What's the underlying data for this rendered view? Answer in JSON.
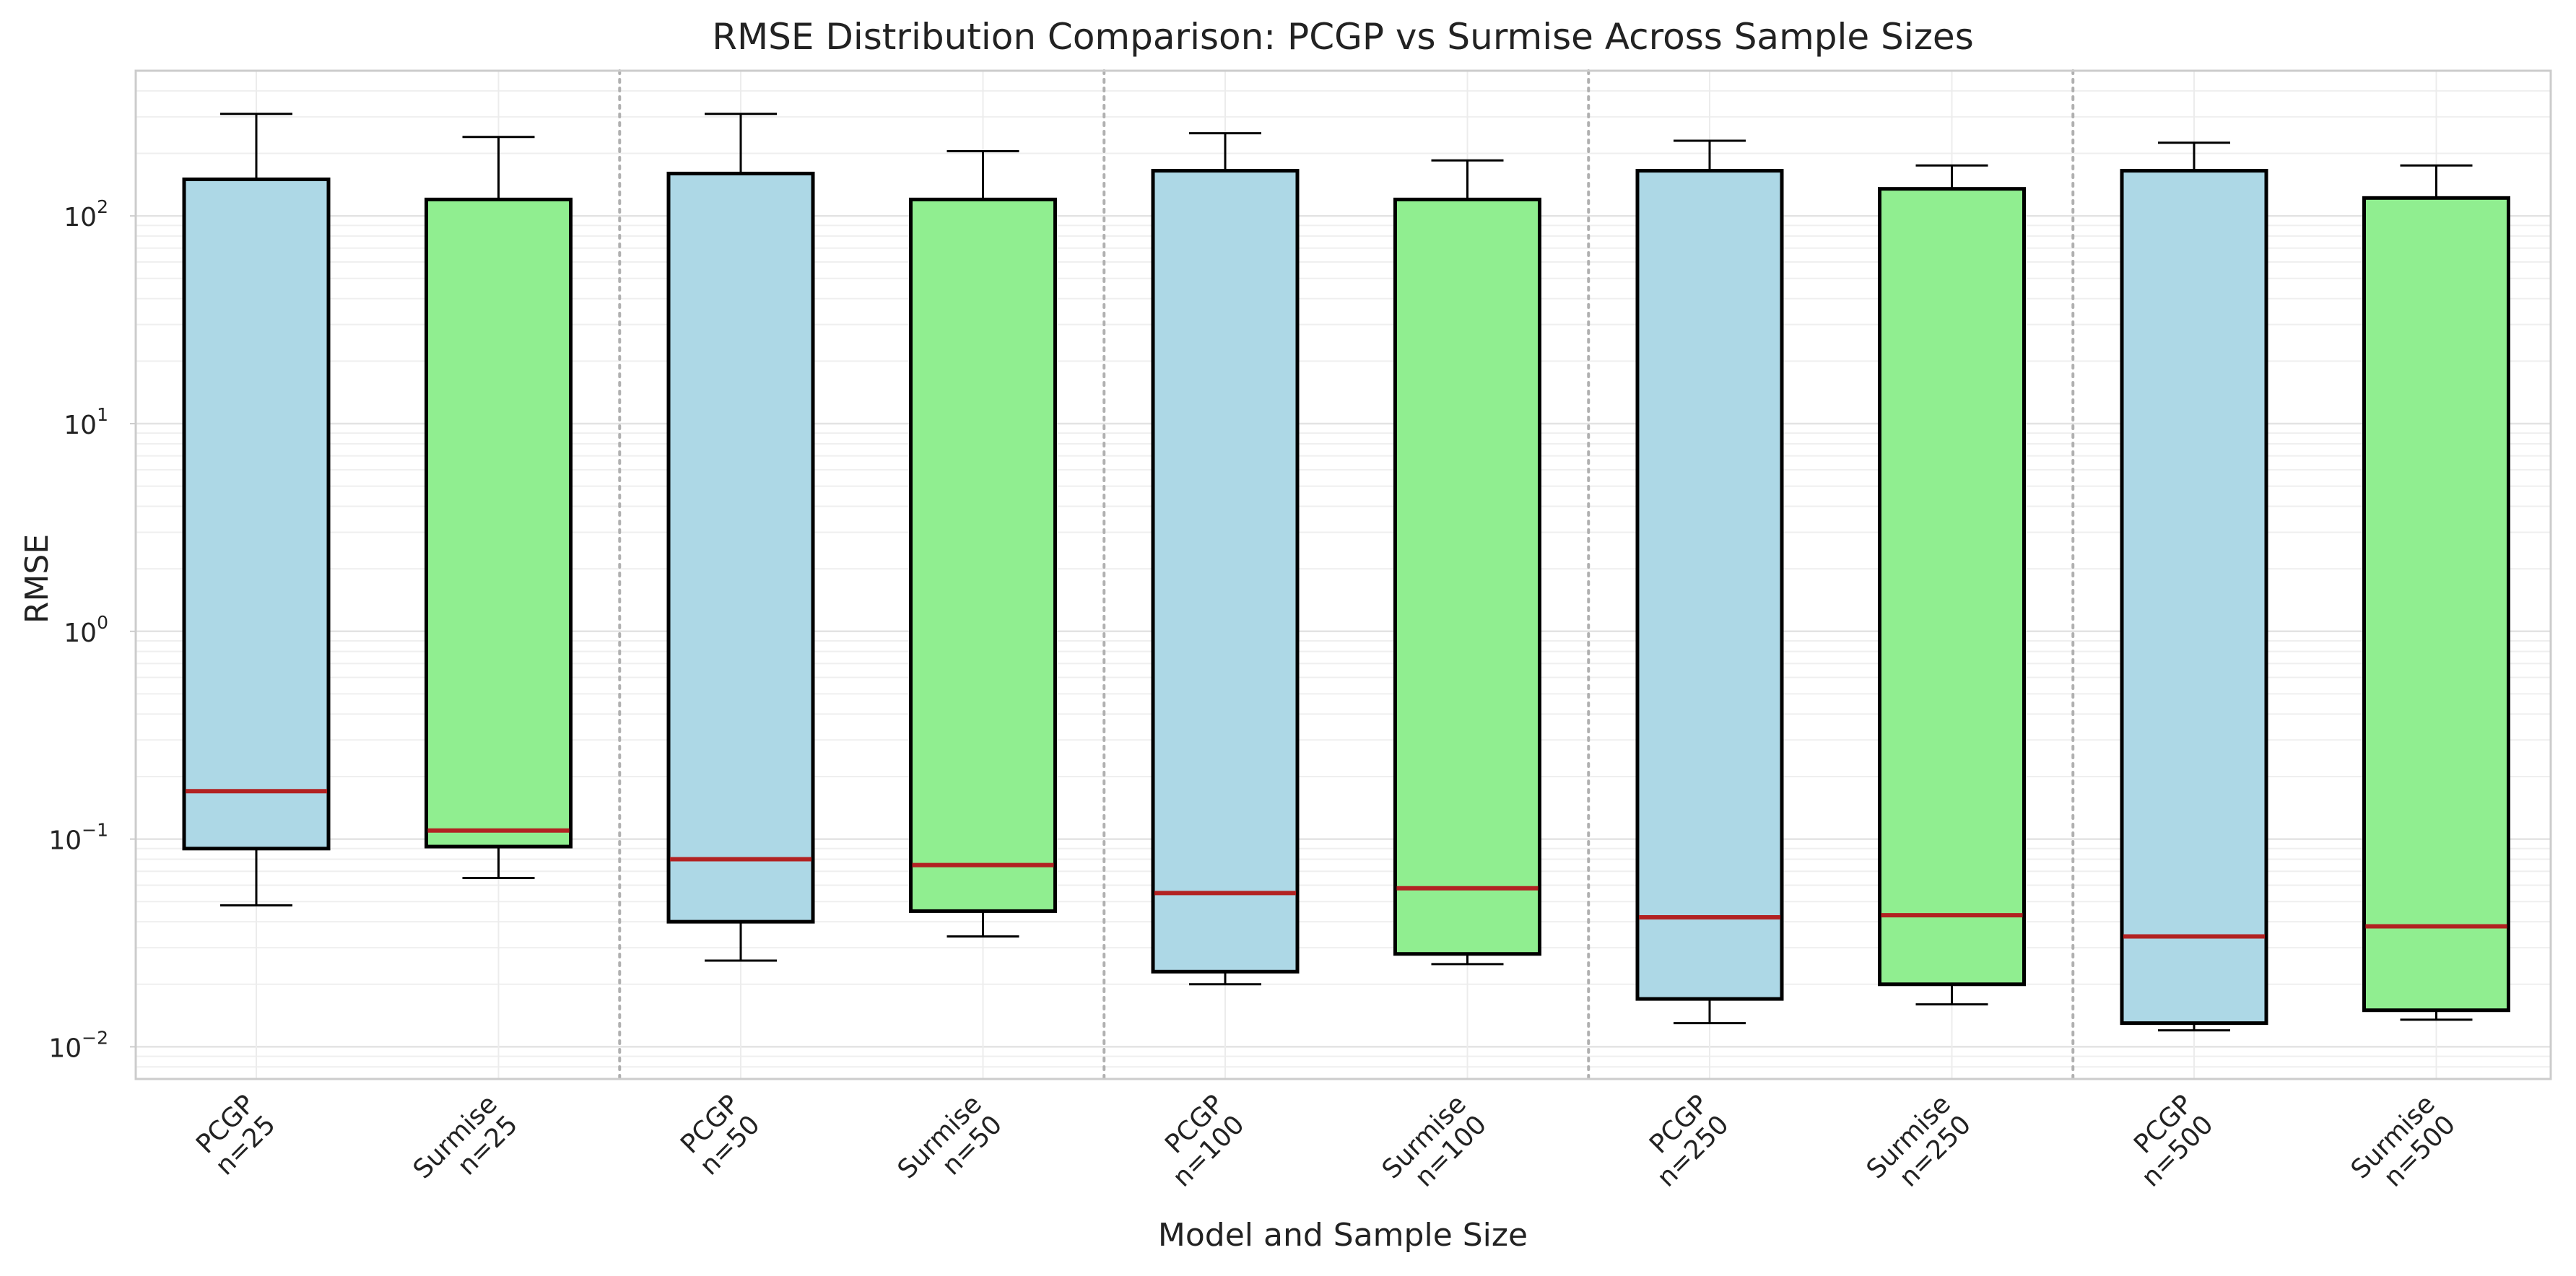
{
  "chart_data": {
    "type": "box",
    "title": "RMSE Distribution Comparison: PCGP vs Surmise Across Sample Sizes",
    "xlabel": "Model and Sample Size",
    "ylabel": "RMSE",
    "yscale": "log",
    "ylim": [
      0.007,
      500
    ],
    "yticks": [
      {
        "value": 0.01,
        "base": "10",
        "exp": "−2"
      },
      {
        "value": 0.1,
        "base": "10",
        "exp": "−1"
      },
      {
        "value": 1,
        "base": "10",
        "exp": "0"
      },
      {
        "value": 10,
        "base": "10",
        "exp": "1"
      },
      {
        "value": 100,
        "base": "10",
        "exp": "2"
      }
    ],
    "grid": true,
    "group_separators": true,
    "colors": {
      "PCGP": "#add8e6",
      "Surmise": "#90ee90",
      "median": "#b22222",
      "box_edge": "#000000"
    },
    "categories": [
      {
        "model": "PCGP",
        "size": "n=25"
      },
      {
        "model": "Surmise",
        "size": "n=25"
      },
      {
        "model": "PCGP",
        "size": "n=50"
      },
      {
        "model": "Surmise",
        "size": "n=50"
      },
      {
        "model": "PCGP",
        "size": "n=100"
      },
      {
        "model": "Surmise",
        "size": "n=100"
      },
      {
        "model": "PCGP",
        "size": "n=250"
      },
      {
        "model": "Surmise",
        "size": "n=250"
      },
      {
        "model": "PCGP",
        "size": "n=500"
      },
      {
        "model": "Surmise",
        "size": "n=500"
      }
    ],
    "boxes": [
      {
        "whislo": 0.048,
        "q1": 0.09,
        "med": 0.17,
        "q3": 150,
        "whishi": 310
      },
      {
        "whislo": 0.065,
        "q1": 0.092,
        "med": 0.11,
        "q3": 120,
        "whishi": 240
      },
      {
        "whislo": 0.026,
        "q1": 0.04,
        "med": 0.08,
        "q3": 160,
        "whishi": 310
      },
      {
        "whislo": 0.034,
        "q1": 0.045,
        "med": 0.075,
        "q3": 120,
        "whishi": 205
      },
      {
        "whislo": 0.02,
        "q1": 0.023,
        "med": 0.055,
        "q3": 165,
        "whishi": 250
      },
      {
        "whislo": 0.025,
        "q1": 0.028,
        "med": 0.058,
        "q3": 120,
        "whishi": 185
      },
      {
        "whislo": 0.013,
        "q1": 0.017,
        "med": 0.042,
        "q3": 165,
        "whishi": 230
      },
      {
        "whislo": 0.016,
        "q1": 0.02,
        "med": 0.043,
        "q3": 135,
        "whishi": 175
      },
      {
        "whislo": 0.012,
        "q1": 0.013,
        "med": 0.034,
        "q3": 165,
        "whishi": 225
      },
      {
        "whislo": 0.0135,
        "q1": 0.015,
        "med": 0.038,
        "q3": 122,
        "whishi": 175
      }
    ]
  }
}
